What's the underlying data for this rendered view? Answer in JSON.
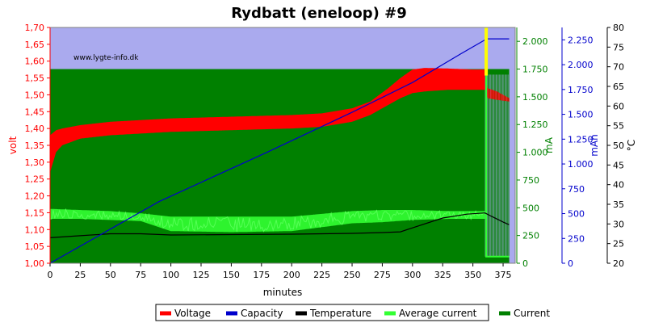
{
  "chart_data": {
    "type": "line",
    "title": "Rydbatt (eneloop) #9",
    "watermark": "www.lygte-info.dk",
    "xlabel": "minutes",
    "xlim": [
      0,
      385
    ],
    "xticks": [
      "0",
      "25",
      "50",
      "75",
      "100",
      "125",
      "150",
      "175",
      "200",
      "225",
      "250",
      "275",
      "300",
      "325",
      "350",
      "375"
    ],
    "axes": {
      "volt": {
        "label": "volt",
        "color": "#ff0000",
        "lim": [
          1.0,
          1.7
        ],
        "ticks": [
          "1,00",
          "1,05",
          "1,10",
          "1,15",
          "1,20",
          "1,25",
          "1,30",
          "1,35",
          "1,40",
          "1,45",
          "1,50",
          "1,55",
          "1,60",
          "1,65",
          "1,70"
        ]
      },
      "mA": {
        "label": "mA",
        "color": "#008000",
        "lim": [
          0,
          2125
        ],
        "ticks": [
          "0",
          "250",
          "500",
          "750",
          "1.000",
          "1.250",
          "1.500",
          "1.750",
          "2.000"
        ]
      },
      "mAh": {
        "label": "mAh",
        "color": "#0000cc",
        "lim": [
          0,
          2375
        ],
        "ticks": [
          "0",
          "250",
          "500",
          "750",
          "1.000",
          "1.250",
          "1.500",
          "1.750",
          "2.000",
          "2.250"
        ]
      },
      "temp": {
        "label": "°C",
        "color": "#000000",
        "lim": [
          20,
          80
        ],
        "ticks": [
          "20",
          "25",
          "30",
          "35",
          "40",
          "45",
          "50",
          "55",
          "60",
          "65",
          "70",
          "75",
          "80"
        ]
      }
    },
    "series": [
      {
        "name": "Voltage",
        "color": "#ff0000",
        "axis": "volt",
        "style": "band",
        "x": [
          0,
          5,
          10,
          25,
          50,
          100,
          150,
          200,
          225,
          250,
          265,
          280,
          290,
          300,
          310,
          330,
          350,
          360,
          362,
          370,
          380
        ],
        "lo": [
          1.27,
          1.33,
          1.35,
          1.37,
          1.38,
          1.39,
          1.395,
          1.4,
          1.405,
          1.42,
          1.44,
          1.47,
          1.49,
          1.505,
          1.51,
          1.515,
          1.515,
          1.515,
          1.49,
          1.485,
          1.48
        ],
        "hi": [
          1.38,
          1.395,
          1.4,
          1.41,
          1.42,
          1.43,
          1.435,
          1.44,
          1.445,
          1.46,
          1.48,
          1.52,
          1.55,
          1.575,
          1.58,
          1.578,
          1.575,
          1.575,
          1.52,
          1.51,
          1.49
        ]
      },
      {
        "name": "Capacity",
        "color": "#0000cc",
        "axis": "mAh",
        "style": "line",
        "x": [
          0,
          90,
          180,
          250,
          300,
          340,
          360,
          362,
          380
        ],
        "y": [
          0,
          620,
          1120,
          1520,
          1820,
          2110,
          2250,
          2260,
          2260
        ]
      },
      {
        "name": "Temperature",
        "color": "#000000",
        "axis": "temp",
        "style": "line",
        "x": [
          0,
          25,
          50,
          75,
          100,
          150,
          200,
          250,
          275,
          290,
          300,
          325,
          345,
          360,
          365,
          375,
          380
        ],
        "y": [
          26.5,
          27.0,
          27.5,
          27.5,
          27.2,
          27.3,
          27.4,
          27.6,
          27.8,
          28.0,
          29.0,
          31.5,
          32.5,
          32.8,
          32.0,
          30.5,
          29.8
        ]
      },
      {
        "name": "Average current",
        "color": "#33ff33",
        "axis": "mA",
        "style": "band",
        "x": [
          0,
          25,
          50,
          75,
          100,
          150,
          200,
          250,
          275,
          300,
          330,
          350,
          360
        ],
        "lo": [
          400,
          400,
          390,
          380,
          290,
          280,
          290,
          360,
          370,
          390,
          400,
          400,
          400
        ],
        "hi": [
          490,
          480,
          470,
          450,
          420,
          420,
          420,
          470,
          480,
          480,
          470,
          470,
          470
        ]
      },
      {
        "name": "Current",
        "color": "#008000",
        "axis": "mA",
        "style": "area",
        "x": [
          0,
          360
        ],
        "y": [
          1750,
          1750
        ],
        "tail_pulse_range": [
          360,
          380
        ],
        "tail_pulse_values": [
          0,
          1750
        ]
      }
    ],
    "cutoff_marker_x": 361,
    "cutoff_marker_color": "#ffff00",
    "legend": {
      "position": "bottom"
    }
  }
}
